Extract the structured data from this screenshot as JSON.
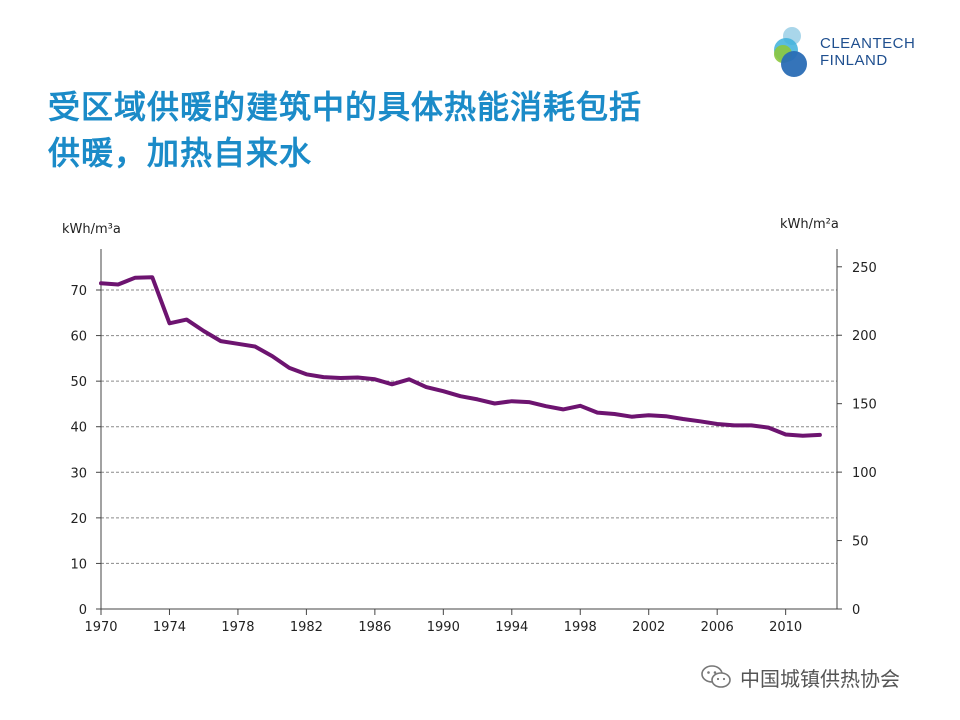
{
  "slide": {
    "title_line1": "受区域供暖的建筑中的具体热能消耗包括",
    "title_line2": "供暖，加热自来水"
  },
  "logo": {
    "line1": "CLEANTECH",
    "line2": "FINLAND",
    "colors": [
      "#a9d6ea",
      "#3db0dc",
      "#8cc63e",
      "#2a6db5"
    ]
  },
  "watermark": {
    "text": "中国城镇供热协会",
    "icon": "wechat-icon"
  },
  "chart_data": {
    "type": "line",
    "title": "",
    "y_unit_left": "kWh/m³a",
    "y_unit_right": "kWh/m²a",
    "xlim": [
      1970,
      2013
    ],
    "ylim_left": [
      0,
      79
    ],
    "ylim_right": [
      0,
      263
    ],
    "x_ticks": [
      1970,
      1974,
      1978,
      1982,
      1986,
      1990,
      1994,
      1998,
      2002,
      2006,
      2010
    ],
    "y_ticks_left": [
      0,
      10,
      20,
      30,
      40,
      50,
      60,
      70
    ],
    "y_ticks_right": [
      0,
      50,
      100,
      150,
      200,
      250
    ],
    "grid": "horizontal-dashed",
    "line_color": "#6d1470",
    "series": [
      {
        "name": "",
        "x": [
          1970,
          1971,
          1972,
          1973,
          1974,
          1975,
          1976,
          1977,
          1978,
          1979,
          1980,
          1981,
          1982,
          1983,
          1984,
          1985,
          1986,
          1987,
          1988,
          1989,
          1990,
          1991,
          1992,
          1993,
          1994,
          1995,
          1996,
          1997,
          1998,
          1999,
          2000,
          2001,
          2002,
          2003,
          2004,
          2005,
          2006,
          2007,
          2008,
          2009,
          2010,
          2011,
          2012
        ],
        "values": [
          71.5,
          71.2,
          72.7,
          72.8,
          62.7,
          63.5,
          61.0,
          58.8,
          58.2,
          57.6,
          55.5,
          52.9,
          51.5,
          50.9,
          50.7,
          50.8,
          50.4,
          49.3,
          50.4,
          48.7,
          47.8,
          46.7,
          46.0,
          45.1,
          45.6,
          45.4,
          44.5,
          43.8,
          44.6,
          43.1,
          42.8,
          42.2,
          42.5,
          42.3,
          41.7,
          41.2,
          40.6,
          40.3,
          40.3,
          39.8,
          38.3,
          38.0,
          38.2
        ]
      }
    ]
  }
}
